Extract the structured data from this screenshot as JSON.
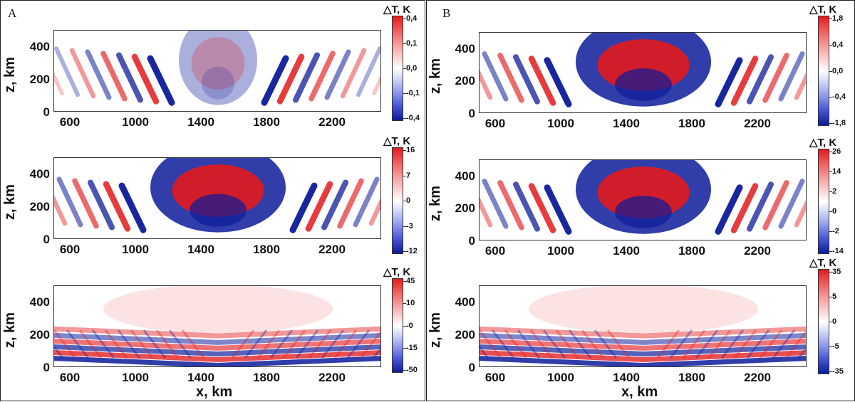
{
  "figure": {
    "panel_letters": [
      "A",
      "B"
    ],
    "ylabel": "z, km",
    "xlabel": "x, km",
    "colorbar_title": "△T, K",
    "x_ticks": [
      "600",
      "1000",
      "1400",
      "1800",
      "2200"
    ],
    "y_ticks": [
      "400",
      "200",
      "0"
    ]
  },
  "colors": {
    "positive": "#e31a1c",
    "negative": "#0d1b9a",
    "zero": "#ffffff"
  },
  "chart_data": [
    {
      "type": "heatmap",
      "panel": "A",
      "row": 1,
      "xlabel": "",
      "ylabel": "z, km",
      "xlim": [
        500,
        2500
      ],
      "ylim": [
        0,
        500
      ],
      "colorbar_title": "△T, K",
      "colorbar_ticks": [
        "0,4",
        "0,1",
        "0,0",
        "-0,1",
        "-0,4"
      ],
      "colorbar_range": [
        -0.4,
        0.4
      ],
      "pattern": "arcs_upper"
    },
    {
      "type": "heatmap",
      "panel": "A",
      "row": 2,
      "xlabel": "",
      "ylabel": "z, km",
      "xlim": [
        500,
        2500
      ],
      "ylim": [
        0,
        500
      ],
      "colorbar_title": "△T, K",
      "colorbar_ticks": [
        "16",
        "7",
        "0",
        "-3",
        "-12"
      ],
      "colorbar_range": [
        -12,
        16
      ],
      "pattern": "dome"
    },
    {
      "type": "heatmap",
      "panel": "A",
      "row": 3,
      "xlabel": "x, km",
      "ylabel": "z, km",
      "xlim": [
        500,
        2500
      ],
      "ylim": [
        0,
        500
      ],
      "colorbar_title": "△T, K",
      "colorbar_ticks": [
        "45",
        "10",
        "-0",
        "-15",
        "-50"
      ],
      "colorbar_range": [
        -50,
        45
      ],
      "pattern": "bands"
    },
    {
      "type": "heatmap",
      "panel": "B",
      "row": 1,
      "xlabel": "",
      "ylabel": "z, km",
      "xlim": [
        500,
        2500
      ],
      "ylim": [
        0,
        500
      ],
      "colorbar_title": "△T, K",
      "colorbar_ticks": [
        "1,8",
        "0,4",
        "0,0",
        "-0,4",
        "-1,8"
      ],
      "colorbar_range": [
        -1.8,
        1.8
      ],
      "pattern": "dome"
    },
    {
      "type": "heatmap",
      "panel": "B",
      "row": 2,
      "xlabel": "",
      "ylabel": "z, km",
      "xlim": [
        500,
        2500
      ],
      "ylim": [
        0,
        500
      ],
      "colorbar_title": "△T, K",
      "colorbar_ticks": [
        "26",
        "14",
        "2",
        "0",
        "-2",
        "-14"
      ],
      "colorbar_range": [
        -14,
        26
      ],
      "pattern": "dome"
    },
    {
      "type": "heatmap",
      "panel": "B",
      "row": 3,
      "xlabel": "x, km",
      "ylabel": "z, km",
      "xlim": [
        500,
        2500
      ],
      "ylim": [
        0,
        500
      ],
      "colorbar_title": "△T, K",
      "colorbar_ticks": [
        "35",
        "5",
        "0",
        "-5",
        "-35"
      ],
      "colorbar_range": [
        -35,
        35
      ],
      "pattern": "bands"
    }
  ]
}
